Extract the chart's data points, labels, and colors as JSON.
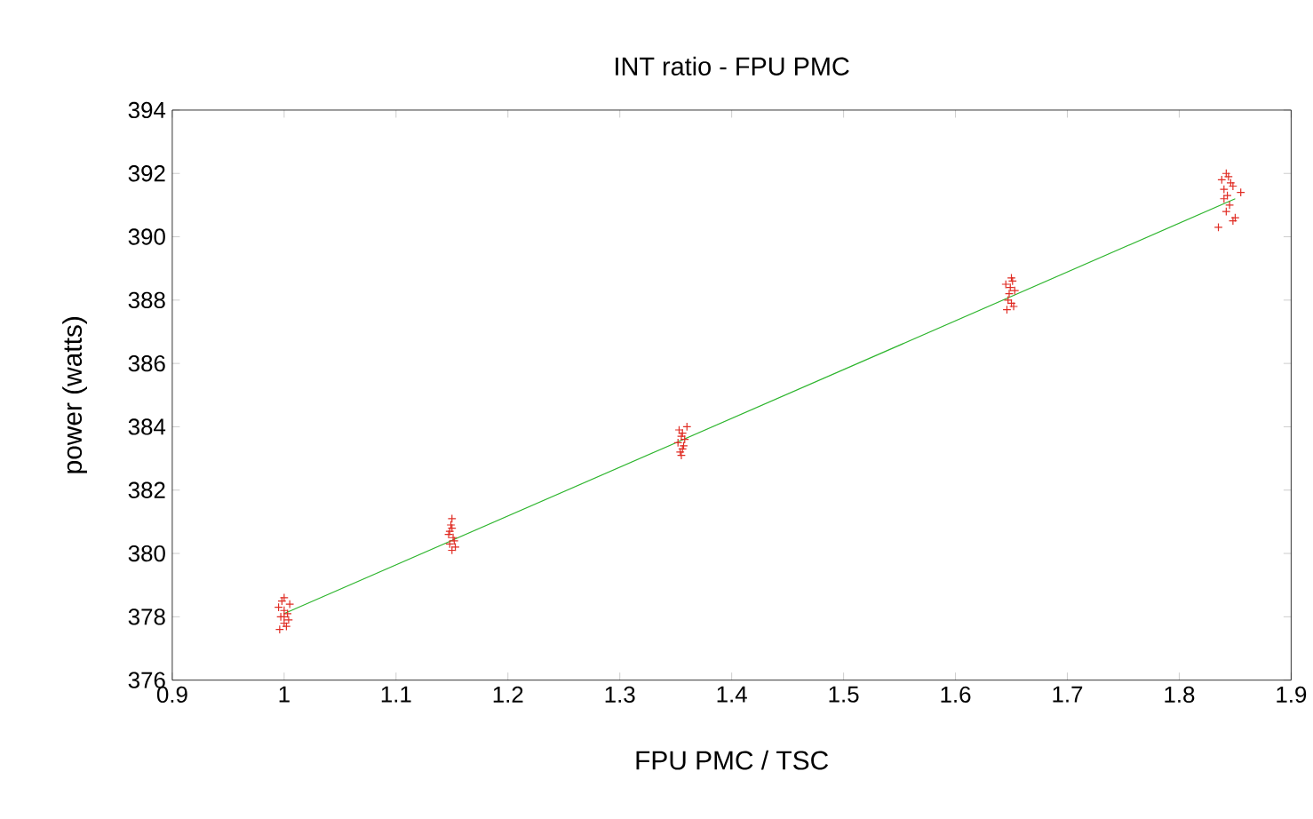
{
  "chart_data": {
    "type": "scatter",
    "title": "INT ratio  -  FPU PMC",
    "xlabel": "FPU PMC / TSC",
    "ylabel": "power (watts)",
    "xlim": [
      0.9,
      1.9
    ],
    "ylim": [
      376,
      394
    ],
    "xticks": [
      0.9,
      1,
      1.1,
      1.2,
      1.3,
      1.4,
      1.5,
      1.6,
      1.7,
      1.8,
      1.9
    ],
    "yticks": [
      376,
      378,
      380,
      382,
      384,
      386,
      388,
      390,
      392,
      394
    ],
    "grid": false,
    "series": [
      {
        "marker": "cross",
        "color": "#e02d24",
        "x": [
          0.995,
          1.0,
          1.005,
          0.997,
          1.003,
          1.0,
          0.996,
          1.004,
          1.0,
          0.998,
          1.002,
          1.0,
          1.148,
          1.152,
          1.15,
          1.147,
          1.153,
          1.15,
          1.149,
          1.151,
          1.15,
          1.148,
          1.352,
          1.356,
          1.36,
          1.354,
          1.358,
          1.355,
          1.353,
          1.357,
          1.355,
          1.356,
          1.645,
          1.65,
          1.653,
          1.647,
          1.652,
          1.648,
          1.65,
          1.651,
          1.649,
          1.646,
          1.838,
          1.842,
          1.846,
          1.84,
          1.844,
          1.848,
          1.84,
          1.845,
          1.842,
          1.835,
          1.85,
          1.855,
          1.848,
          1.843
        ],
        "values": [
          378.3,
          378.6,
          378.4,
          378.0,
          378.1,
          377.8,
          377.6,
          377.9,
          378.2,
          378.5,
          377.7,
          378.0,
          380.3,
          380.4,
          380.8,
          380.6,
          380.2,
          381.1,
          380.9,
          380.5,
          380.1,
          380.7,
          383.5,
          383.8,
          384.0,
          383.2,
          383.6,
          383.1,
          383.9,
          383.4,
          383.7,
          383.3,
          388.5,
          388.7,
          388.3,
          388.0,
          387.8,
          388.2,
          387.9,
          388.6,
          388.4,
          387.7,
          391.8,
          392.0,
          391.7,
          391.5,
          391.9,
          391.6,
          391.2,
          391.0,
          390.8,
          390.3,
          390.6,
          391.4,
          390.5,
          391.3
        ]
      },
      {
        "type": "line",
        "marker": "none",
        "color": "#2db52d",
        "x": [
          1.0,
          1.85
        ],
        "values": [
          378.1,
          391.2
        ]
      }
    ]
  }
}
